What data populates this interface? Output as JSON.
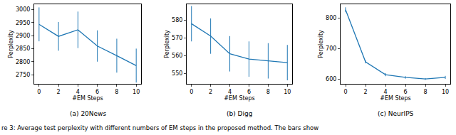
{
  "caption": "re 3: Average test perplexity with different numbers of EM steps in the proposed method. The bars show",
  "chart_data": [
    {
      "type": "line",
      "title": "(a) 20News",
      "x_label": "#EM Steps",
      "y_label": "Perplexity",
      "x": [
        0,
        2,
        4,
        6,
        8,
        10
      ],
      "values": [
        2943,
        2897,
        2922,
        2860,
        2823,
        2785
      ],
      "errors": [
        65,
        55,
        70,
        60,
        65,
        65
      ],
      "color": "#1f77b4",
      "xlim": [
        -0.5,
        10.5
      ],
      "xticks": [
        0,
        2,
        4,
        6,
        8,
        10
      ],
      "ylim": [
        2715,
        3020
      ],
      "yticks": [
        2750,
        2800,
        2850,
        2900,
        2950,
        3000
      ]
    },
    {
      "type": "line",
      "title": "(b) Digg",
      "x_label": "#EM Steps",
      "y_label": "Perplexity",
      "x": [
        0,
        2,
        4,
        6,
        8,
        10
      ],
      "values": [
        578,
        571,
        561,
        558,
        557,
        556
      ],
      "errors": [
        10,
        10,
        10,
        10,
        10,
        10
      ],
      "color": "#1f77b4",
      "xlim": [
        -0.5,
        10.5
      ],
      "xticks": [
        0,
        2,
        4,
        6,
        8,
        10
      ],
      "ylim": [
        544,
        589
      ],
      "yticks": [
        550,
        560,
        570,
        580
      ]
    },
    {
      "type": "line",
      "title": "(c) NeurIPS",
      "x_label": "#EM Steps",
      "y_label": "Perplexity",
      "x": [
        0,
        2,
        4,
        6,
        8,
        10
      ],
      "values": [
        827,
        657,
        615,
        606,
        601,
        606
      ],
      "errors": [
        8,
        5,
        5,
        4,
        3,
        5
      ],
      "color": "#1f77b4",
      "xlim": [
        -0.5,
        10.5
      ],
      "xticks": [
        0,
        2,
        4,
        6,
        8,
        10
      ],
      "ylim": [
        585,
        845
      ],
      "yticks": [
        600,
        700,
        800
      ]
    }
  ]
}
